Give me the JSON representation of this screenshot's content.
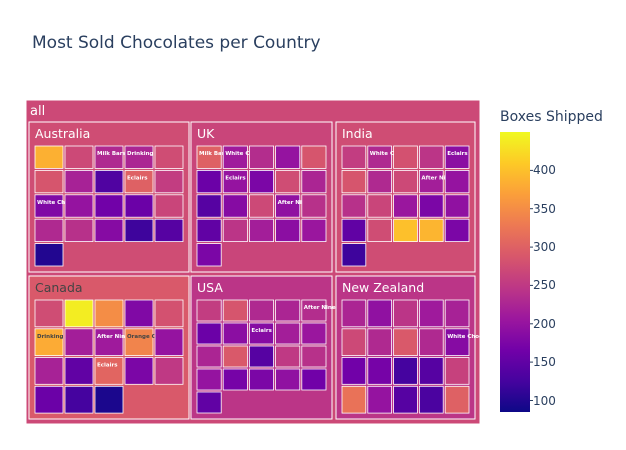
{
  "title": "Most Sold Chocolates per Country",
  "colors": {
    "colorscale": [
      "#0d0887",
      "#46039f",
      "#7201a8",
      "#9c179e",
      "#bd3786",
      "#d8576b",
      "#ed7953",
      "#fb9f3a",
      "#fdca26",
      "#f0f921"
    ],
    "text_color": "#2a3f5f",
    "tile_border": "#ffffff"
  },
  "chart_data": {
    "type": "treemap",
    "title": "Most Sold Chocolates per Country",
    "root_label": "all",
    "root_value": 270,
    "colorbar": {
      "title": "Boxes Shipped",
      "range": [
        85,
        450
      ],
      "ticks": [
        100,
        150,
        200,
        250,
        300,
        350,
        400
      ]
    },
    "groups": [
      {
        "name": "Australia",
        "value": 275,
        "items": [
          {
            "label": "",
            "value": 385
          },
          {
            "label": "",
            "value": 270
          },
          {
            "label": "Milk Bars",
            "value": 230
          },
          {
            "label": "Drinking Coco",
            "value": 225
          },
          {
            "label": "",
            "value": 275
          },
          {
            "label": "",
            "value": 285
          },
          {
            "label": "",
            "value": 220
          },
          {
            "label": "",
            "value": 135
          },
          {
            "label": "Eclairs",
            "value": 300
          },
          {
            "label": "",
            "value": 255
          },
          {
            "label": "White Choc",
            "value": 180
          },
          {
            "label": "",
            "value": 200
          },
          {
            "label": "",
            "value": 165
          },
          {
            "label": "",
            "value": 160
          },
          {
            "label": "",
            "value": 265
          },
          {
            "label": "",
            "value": 230
          },
          {
            "label": "",
            "value": 240
          },
          {
            "label": "",
            "value": 185
          },
          {
            "label": "",
            "value": 120
          },
          {
            "label": "",
            "value": 140
          },
          {
            "label": "",
            "value": 100
          }
        ]
      },
      {
        "name": "UK",
        "value": 265,
        "items": [
          {
            "label": "Milk Bars",
            "value": 300
          },
          {
            "label": "White Choc",
            "value": 210
          },
          {
            "label": "",
            "value": 235
          },
          {
            "label": "",
            "value": 200
          },
          {
            "label": "",
            "value": 285
          },
          {
            "label": "",
            "value": 160
          },
          {
            "label": "Eclairs",
            "value": 200
          },
          {
            "label": "",
            "value": 175
          },
          {
            "label": "",
            "value": 275
          },
          {
            "label": "",
            "value": 225
          },
          {
            "label": "",
            "value": 140
          },
          {
            "label": "",
            "value": 185
          },
          {
            "label": "",
            "value": 270
          },
          {
            "label": "After Nines",
            "value": 195
          },
          {
            "label": "",
            "value": 240
          },
          {
            "label": "",
            "value": 150
          },
          {
            "label": "",
            "value": 245
          },
          {
            "label": "",
            "value": 215
          },
          {
            "label": "",
            "value": 190
          },
          {
            "label": "",
            "value": 205
          },
          {
            "label": "",
            "value": 175
          }
        ]
      },
      {
        "name": "India",
        "value": 275,
        "items": [
          {
            "label": "",
            "value": 255
          },
          {
            "label": "White Choc",
            "value": 230
          },
          {
            "label": "",
            "value": 280
          },
          {
            "label": "",
            "value": 245
          },
          {
            "label": "Eclairs",
            "value": 190
          },
          {
            "label": "",
            "value": 285
          },
          {
            "label": "",
            "value": 230
          },
          {
            "label": "",
            "value": 270
          },
          {
            "label": "After Nines",
            "value": 215
          },
          {
            "label": "",
            "value": 200
          },
          {
            "label": "",
            "value": 240
          },
          {
            "label": "",
            "value": 265
          },
          {
            "label": "",
            "value": 205
          },
          {
            "label": "",
            "value": 175
          },
          {
            "label": "",
            "value": 195
          },
          {
            "label": "",
            "value": 150
          },
          {
            "label": "",
            "value": 275
          },
          {
            "label": "",
            "value": 400
          },
          {
            "label": "",
            "value": 390
          },
          {
            "label": "",
            "value": 175
          },
          {
            "label": "",
            "value": 120
          }
        ]
      },
      {
        "name": "Canada",
        "value": 290,
        "items": [
          {
            "label": "",
            "value": 275
          },
          {
            "label": "",
            "value": 440
          },
          {
            "label": "",
            "value": 350
          },
          {
            "label": "",
            "value": 180
          },
          {
            "label": "",
            "value": 280
          },
          {
            "label": "Drinking Coco",
            "value": 380
          },
          {
            "label": "",
            "value": 215
          },
          {
            "label": "After Nines",
            "value": 210
          },
          {
            "label": "Orange Choc",
            "value": 340
          },
          {
            "label": "",
            "value": 200
          },
          {
            "label": "",
            "value": 220
          },
          {
            "label": "",
            "value": 150
          },
          {
            "label": "Eclairs",
            "value": 305
          },
          {
            "label": "",
            "value": 175
          },
          {
            "label": "",
            "value": 250
          },
          {
            "label": "",
            "value": 160
          },
          {
            "label": "",
            "value": 125
          },
          {
            "label": "",
            "value": 95
          }
        ]
      },
      {
        "name": "USA",
        "value": 245,
        "items": [
          {
            "label": "",
            "value": 255
          },
          {
            "label": "",
            "value": 285
          },
          {
            "label": "",
            "value": 230
          },
          {
            "label": "",
            "value": 225
          },
          {
            "label": "After Nines",
            "value": 235
          },
          {
            "label": "",
            "value": 160
          },
          {
            "label": "",
            "value": 190
          },
          {
            "label": "Eclairs",
            "value": 185
          },
          {
            "label": "",
            "value": 215
          },
          {
            "label": "",
            "value": 205
          },
          {
            "label": "",
            "value": 225
          },
          {
            "label": "",
            "value": 290
          },
          {
            "label": "",
            "value": 140
          },
          {
            "label": "",
            "value": 250
          },
          {
            "label": "",
            "value": 240
          },
          {
            "label": "",
            "value": 200
          },
          {
            "label": "",
            "value": 170
          },
          {
            "label": "",
            "value": 175
          },
          {
            "label": "",
            "value": 195
          },
          {
            "label": "",
            "value": 165
          },
          {
            "label": "",
            "value": 150
          }
        ]
      },
      {
        "name": "New Zealand",
        "value": 245,
        "items": [
          {
            "label": "",
            "value": 225
          },
          {
            "label": "",
            "value": 195
          },
          {
            "label": "",
            "value": 245
          },
          {
            "label": "",
            "value": 210
          },
          {
            "label": "",
            "value": 220
          },
          {
            "label": "",
            "value": 270
          },
          {
            "label": "",
            "value": 230
          },
          {
            "label": "",
            "value": 290
          },
          {
            "label": "",
            "value": 230
          },
          {
            "label": "White Choc",
            "value": 185
          },
          {
            "label": "",
            "value": 165
          },
          {
            "label": "",
            "value": 170
          },
          {
            "label": "",
            "value": 125
          },
          {
            "label": "",
            "value": 140
          },
          {
            "label": "",
            "value": 260
          },
          {
            "label": "",
            "value": 320
          },
          {
            "label": "",
            "value": 200
          },
          {
            "label": "",
            "value": 140
          },
          {
            "label": "",
            "value": 130
          },
          {
            "label": "",
            "value": 300
          }
        ]
      }
    ]
  }
}
